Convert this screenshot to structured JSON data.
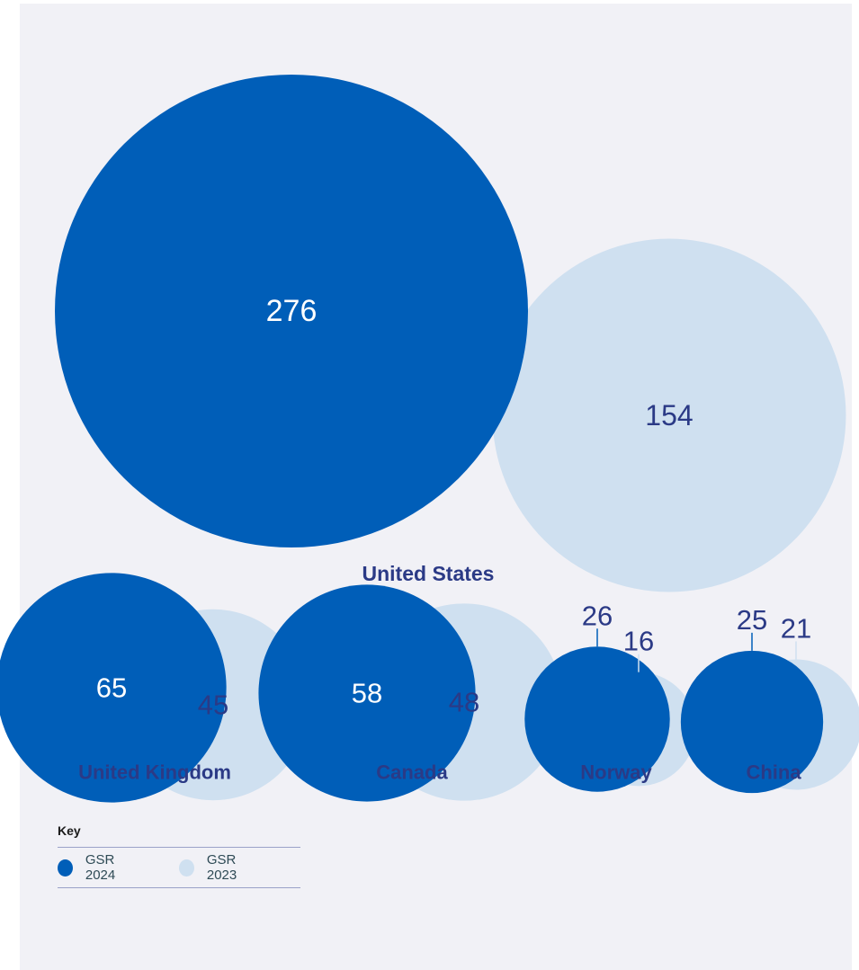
{
  "chart_data": {
    "type": "bubble",
    "title": "",
    "series": [
      {
        "name": "GSR 2024",
        "color": "#005eb8"
      },
      {
        "name": "GSR 2023",
        "color": "#cfe0f0"
      }
    ],
    "groups": [
      {
        "label": "United States",
        "values": [
          276,
          154
        ]
      },
      {
        "label": "United Kingdom",
        "values": [
          65,
          45
        ]
      },
      {
        "label": "Canada",
        "values": [
          58,
          48
        ]
      },
      {
        "label": "Norway",
        "values": [
          26,
          16
        ]
      },
      {
        "label": "China",
        "values": [
          25,
          21
        ]
      }
    ]
  },
  "key": {
    "title": "Key",
    "items": [
      {
        "label": "GSR 2024",
        "color": "#005eb8"
      },
      {
        "label": "GSR 2023",
        "color": "#cfe0f0"
      }
    ]
  },
  "colors": {
    "background": "#f1f1f6",
    "label_text": "#2b3a86",
    "inner_text_light": "#ffffff",
    "inner_text_dark": "#2b3a86"
  }
}
